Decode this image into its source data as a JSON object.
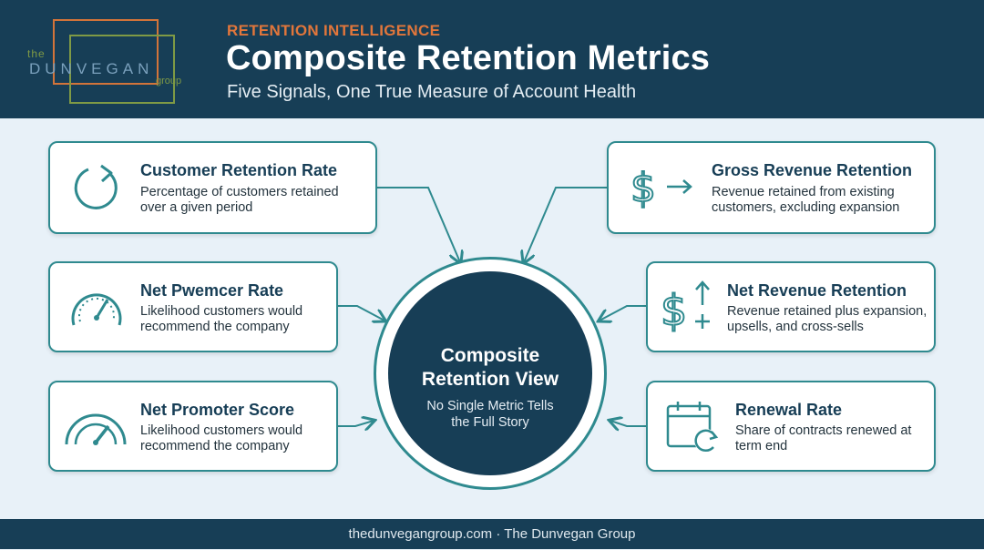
{
  "logo": {
    "the": "the",
    "name": "DUNVEGAN",
    "group": "group"
  },
  "header": {
    "eyebrow": "RETENTION INTELLIGENCE",
    "title": "Composite Retention Metrics",
    "subtitle": "Five Signals, One True Measure of Account Health"
  },
  "cards": {
    "customer_retention": {
      "title": "Customer Retention Rate",
      "desc_1": "Percentage of customers retained",
      "desc_2": "over a given period",
      "icon": "refresh-icon"
    },
    "net_pwemcer": {
      "title": "Net Pwemcer Rate",
      "desc_1": "Likelihood customers would",
      "desc_2": "recommend the company",
      "icon": "gauge-icon"
    },
    "net_promoter": {
      "title": "Net Promoter Score",
      "desc_1": "Likelihood customers would",
      "desc_2": "recommend the company",
      "icon": "speedometer-icon"
    },
    "gross_revenue": {
      "title": "Gross Revenue Retention",
      "desc_1": "Revenue retained from existing",
      "desc_2": "customers, excluding expansion",
      "icon": "dollar-arrow-icon"
    },
    "net_revenue": {
      "title": "Net Revenue Retention",
      "desc_1": "Revenue retained plus expansion,",
      "desc_2": "upsells, and cross-sells",
      "icon": "dollar-up-plus-icon"
    },
    "renewal": {
      "title": "Renewal Rate",
      "desc_1": "Share of contracts renewed at",
      "desc_2": "term end",
      "icon": "calendar-renew-icon"
    }
  },
  "center": {
    "title_1": "Composite",
    "title_2": "Retention View",
    "sub_1": "No Single Metric Tells",
    "sub_2": "the Full Story"
  },
  "footer": {
    "text": "thedunvegangroup.com · The Dunvegan Group"
  },
  "colors": {
    "navy": "#173e56",
    "teal": "#2f8a8f",
    "orange": "#e2763b",
    "green": "#7f9a45",
    "background": "#e8f1f8"
  }
}
